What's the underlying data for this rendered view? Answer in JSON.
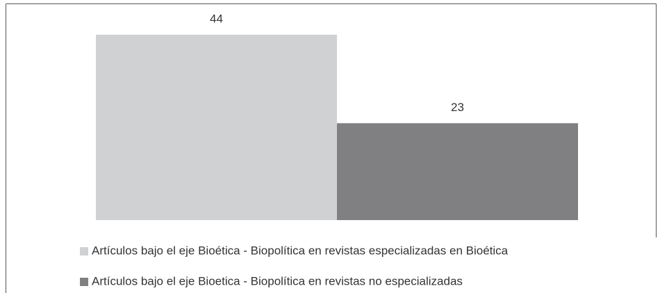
{
  "chart_data": {
    "type": "bar",
    "categories": [
      null
    ],
    "series": [
      {
        "name": "Artículos bajo el eje Bioética - Biopolítica en revistas especializadas en Bioética",
        "color": "#d0d1d3",
        "values": [
          44
        ]
      },
      {
        "name": "Artículos bajo el eje Bioetica - Biopolítica en revistas no especializadas",
        "color": "#808083",
        "values": [
          23
        ]
      }
    ]
  }
}
